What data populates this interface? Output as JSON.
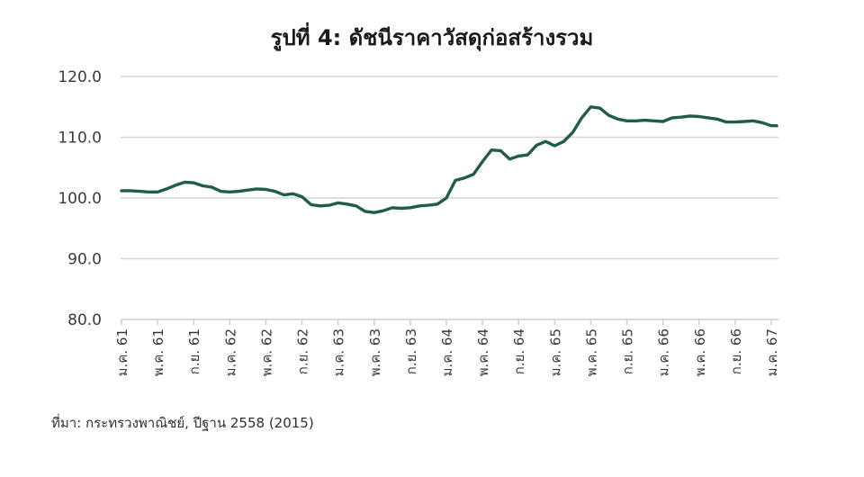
{
  "chart_data": {
    "type": "line",
    "title": "รูปที่ 4: ดัชนีราคาวัสดุก่อสร้างรวม",
    "xlabel": "",
    "ylabel": "",
    "ylim": [
      80,
      120
    ],
    "yticks": [
      "80.0",
      "90.0",
      "100.0",
      "110.0",
      "120.0"
    ],
    "grid": true,
    "legend": null,
    "line_color": "#1f5c4a",
    "x_tick_labels": [
      "ม.ค. 61",
      "พ.ค. 61",
      "ก.ย. 61",
      "ม.ค. 62",
      "พ.ค. 62",
      "ก.ย. 62",
      "ม.ค. 63",
      "พ.ค. 63",
      "ก.ย. 63",
      "ม.ค. 64",
      "พ.ค. 64",
      "ก.ย. 64",
      "ม.ค. 65",
      "พ.ค. 65",
      "ก.ย. 65",
      "ม.ค. 66",
      "พ.ค. 66",
      "ก.ย. 66",
      "ม.ค. 67"
    ],
    "x_tick_every_n_months": 4,
    "series": [
      {
        "name": "ดัชนีราคาวัสดุก่อสร้างรวม",
        "frequency": "monthly",
        "start": "ม.ค. 61",
        "end": "ม.ค. 67",
        "values": [
          101.2,
          101.2,
          101.1,
          101.0,
          101.0,
          101.5,
          102.1,
          102.6,
          102.5,
          102.0,
          101.8,
          101.1,
          101.0,
          101.1,
          101.3,
          101.5,
          101.4,
          101.1,
          100.5,
          100.7,
          100.2,
          98.9,
          98.7,
          98.8,
          99.2,
          99.0,
          98.7,
          97.8,
          97.6,
          97.9,
          98.4,
          98.3,
          98.4,
          98.7,
          98.8,
          99.0,
          100.0,
          102.9,
          103.3,
          103.9,
          106.0,
          107.9,
          107.8,
          106.4,
          106.9,
          107.1,
          108.7,
          109.3,
          108.6,
          109.3,
          110.8,
          113.2,
          115.0,
          114.8,
          113.6,
          113.0,
          112.7,
          112.7,
          112.8,
          112.7,
          112.6,
          113.2,
          113.3,
          113.5,
          113.4,
          113.2,
          113.0,
          112.5,
          112.5,
          112.6,
          112.7,
          112.4,
          111.9
        ]
      }
    ],
    "source": "ที่มา: กระทรวงพาณิชย์, ปีฐาน 2558 (2015)"
  }
}
